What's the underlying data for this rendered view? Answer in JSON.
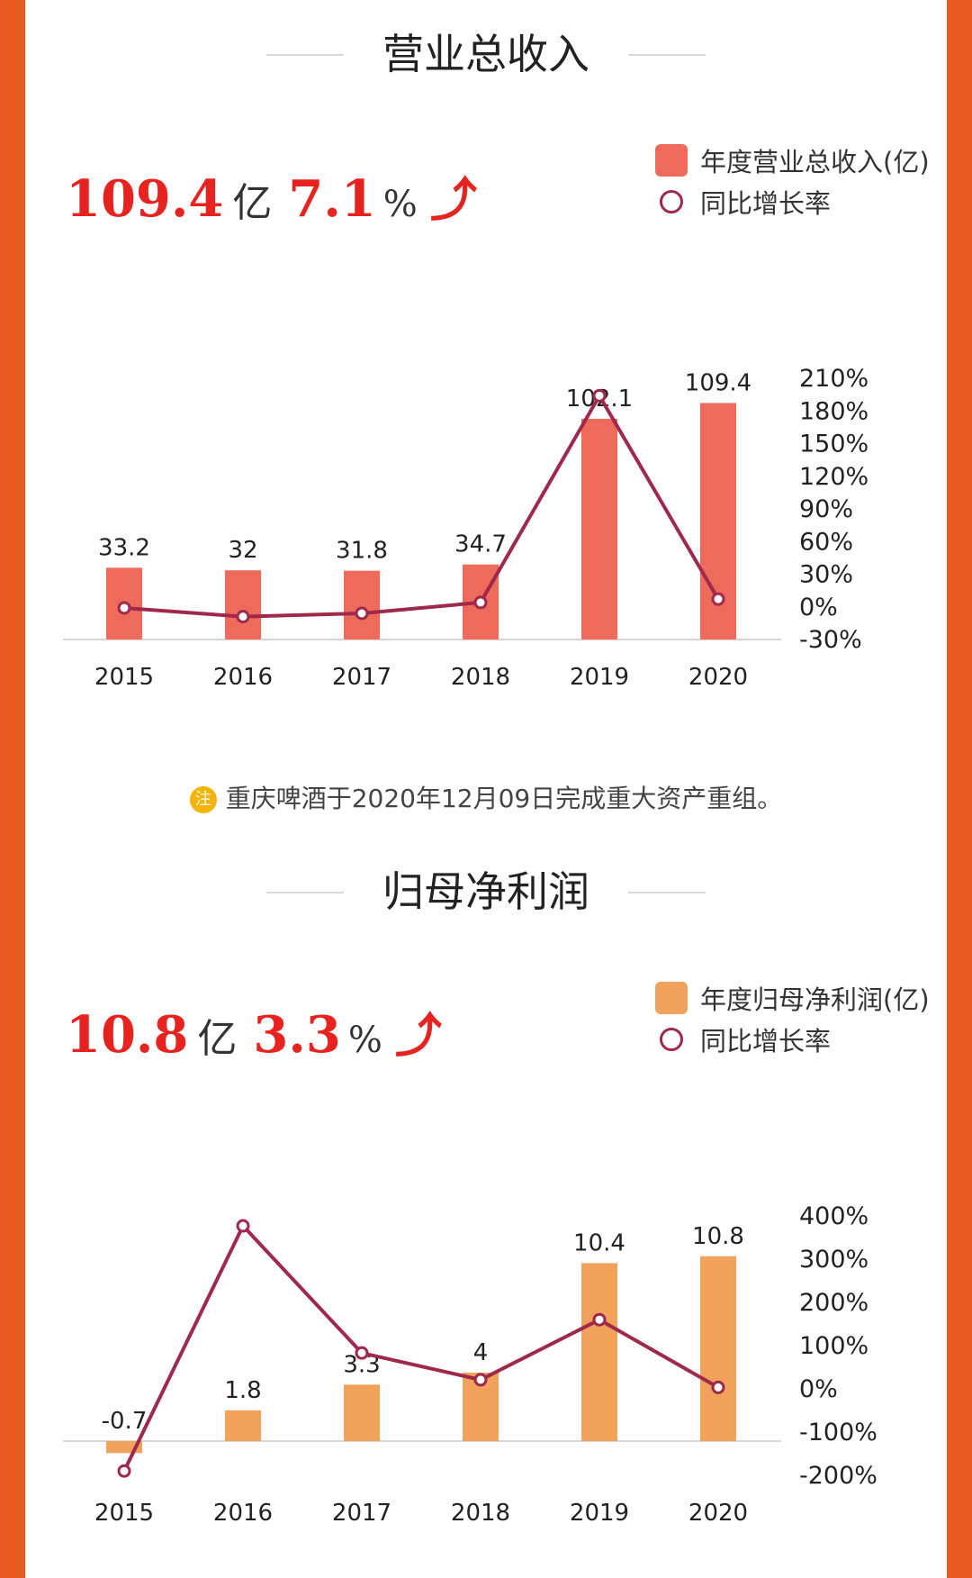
{
  "sections": [
    {
      "title": "营业总收入",
      "kpi": {
        "value": "109.4",
        "unit": "亿",
        "growth": "7.1",
        "growth_unit": "%",
        "arrow": "⤴"
      },
      "legend": {
        "bar": "年度营业总收入(亿)",
        "line": "同比增长率"
      },
      "colors": {
        "bar": "#ee6a5b",
        "line": "#a0284a"
      }
    },
    {
      "title": "归母净利润",
      "kpi": {
        "value": "10.8",
        "unit": "亿",
        "growth": "3.3",
        "growth_unit": "%",
        "arrow": "⤴"
      },
      "legend": {
        "bar": "年度归母净利润(亿)",
        "line": "同比增长率"
      },
      "colors": {
        "bar": "#f0a15a",
        "line": "#a0284a"
      }
    }
  ],
  "note": {
    "badge": "注",
    "text": "重庆啤酒于2020年12月09日完成重大资产重组。"
  },
  "chart_data": [
    {
      "type": "bar",
      "categories": [
        "2015",
        "2016",
        "2017",
        "2018",
        "2019",
        "2020"
      ],
      "series": [
        {
          "name": "年度营业总收入(亿)",
          "values": [
            33.2,
            32,
            31.8,
            34.7,
            102.1,
            109.4
          ],
          "labels": [
            "33.2",
            "32",
            "31.8",
            "34.7",
            "102.1",
            "109.4"
          ]
        },
        {
          "name": "同比增长率",
          "type": "line",
          "values": [
            -1,
            -9,
            -6,
            4,
            194,
            7.1
          ]
        }
      ],
      "y2_ticks": [
        "210%",
        "180%",
        "150%",
        "120%",
        "90%",
        "60%",
        "30%",
        "0%",
        "-30%"
      ],
      "y2lim": [
        -30,
        210
      ]
    },
    {
      "type": "bar",
      "categories": [
        "2015",
        "2016",
        "2017",
        "2018",
        "2019",
        "2020"
      ],
      "series": [
        {
          "name": "年度归母净利润(亿)",
          "values": [
            -0.7,
            1.8,
            3.3,
            4,
            10.4,
            10.8
          ],
          "labels": [
            "-0.7",
            "1.8",
            "3.3",
            "4",
            "10.4",
            "10.8"
          ]
        },
        {
          "name": "同比增长率",
          "type": "line",
          "values": [
            -190,
            377,
            83,
            21,
            160,
            3.3
          ]
        }
      ],
      "y2_ticks": [
        "400%",
        "300%",
        "200%",
        "100%",
        "0%",
        "-100%",
        "-200%"
      ],
      "y2lim": [
        -200,
        400
      ]
    }
  ]
}
